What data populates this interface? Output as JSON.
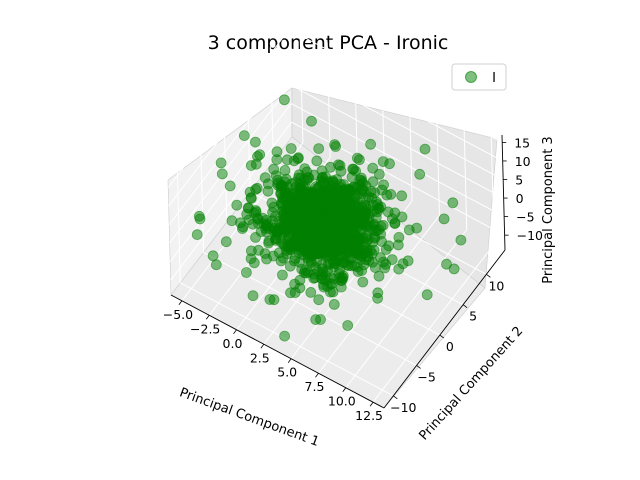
{
  "chart_data": {
    "type": "scatter",
    "projection": "3d",
    "title": "3 component PCA - Ironic",
    "xlabel": "Principal Component 1",
    "ylabel": "Principal Component 2",
    "zlabel": "Principal Component 3",
    "x_ticks": [
      "−5.0",
      "−2.5",
      "0.0",
      "2.5",
      "5.0",
      "7.5",
      "10.0",
      "12.5"
    ],
    "y_ticks": [
      "−10",
      "−5",
      "0",
      "5",
      "10"
    ],
    "z_ticks": [
      "−10",
      "−5",
      "0",
      "5",
      "10",
      "15"
    ],
    "xlim": [
      -6,
      13.5
    ],
    "ylim": [
      -12,
      14
    ],
    "zlim": [
      -14,
      17
    ],
    "grid": true,
    "legend_position": "top-right",
    "series": [
      {
        "name": "I",
        "color": "#008000",
        "alpha": 0.5,
        "cluster_center": [
          3,
          0,
          0
        ],
        "cluster_spread": [
          2.2,
          3.0,
          2.5
        ],
        "approx_point_count": 1200,
        "outliers": [
          [
            9,
            8,
            16
          ],
          [
            -5.5,
            -2,
            6
          ],
          [
            -4.5,
            3,
            5
          ],
          [
            8,
            9,
            6
          ],
          [
            12.5,
            4,
            -3
          ],
          [
            13,
            6,
            1
          ],
          [
            -5.8,
            -6,
            -3
          ],
          [
            11,
            9,
            3
          ]
        ]
      }
    ]
  }
}
